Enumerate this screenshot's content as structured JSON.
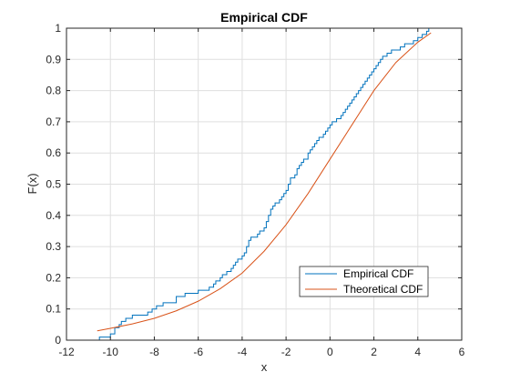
{
  "chart_data": {
    "type": "line",
    "title": "Empirical CDF",
    "xlabel": "x",
    "ylabel": "F(x)",
    "xlim": [
      -12,
      6
    ],
    "ylim": [
      0,
      1
    ],
    "xticks": [
      "-12",
      "-10",
      "-8",
      "-6",
      "-4",
      "-2",
      "0",
      "2",
      "4",
      "6"
    ],
    "yticks": [
      "0",
      "0.1",
      "0.2",
      "0.3",
      "0.4",
      "0.5",
      "0.6",
      "0.7",
      "0.8",
      "0.9",
      "1"
    ],
    "grid": true,
    "legend_position": "bottom-right",
    "series": [
      {
        "name": "Empirical CDF",
        "color": "#0072BD",
        "style": "stairs",
        "x": [
          -10.5,
          -10.0,
          -9.8,
          -9.6,
          -9.5,
          -9.3,
          -9.0,
          -8.3,
          -8.1,
          -7.9,
          -7.6,
          -7.0,
          -6.6,
          -6.0,
          -5.5,
          -5.3,
          -5.2,
          -5.0,
          -4.9,
          -4.7,
          -4.5,
          -4.4,
          -4.3,
          -4.2,
          -4.0,
          -3.9,
          -3.8,
          -3.7,
          -3.6,
          -3.5,
          -3.3,
          -3.2,
          -3.0,
          -2.9,
          -2.8,
          -2.7,
          -2.6,
          -2.5,
          -2.3,
          -2.2,
          -2.1,
          -2.0,
          -1.9,
          -1.8,
          -1.6,
          -1.5,
          -1.4,
          -1.3,
          -1.2,
          -1.0,
          -0.9,
          -0.8,
          -0.7,
          -0.6,
          -0.5,
          -0.4,
          -0.3,
          -0.2,
          -0.1,
          0.0,
          0.1,
          0.2,
          0.3,
          0.5,
          0.6,
          0.7,
          0.8,
          0.9,
          1.0,
          1.1,
          1.2,
          1.3,
          1.4,
          1.5,
          1.6,
          1.7,
          1.8,
          1.9,
          2.0,
          2.1,
          2.2,
          2.3,
          2.4,
          2.5,
          2.6,
          2.8,
          3.0,
          3.2,
          3.4,
          3.6,
          3.8,
          4.0,
          4.2,
          4.4,
          4.5
        ],
        "y": [
          0.01,
          0.02,
          0.04,
          0.05,
          0.06,
          0.07,
          0.08,
          0.09,
          0.1,
          0.11,
          0.12,
          0.14,
          0.15,
          0.16,
          0.17,
          0.18,
          0.19,
          0.2,
          0.21,
          0.22,
          0.23,
          0.24,
          0.25,
          0.26,
          0.27,
          0.28,
          0.3,
          0.32,
          0.33,
          0.33,
          0.34,
          0.35,
          0.36,
          0.38,
          0.4,
          0.42,
          0.43,
          0.44,
          0.45,
          0.46,
          0.47,
          0.48,
          0.5,
          0.52,
          0.53,
          0.55,
          0.56,
          0.57,
          0.58,
          0.6,
          0.61,
          0.62,
          0.63,
          0.64,
          0.65,
          0.65,
          0.66,
          0.67,
          0.68,
          0.69,
          0.7,
          0.7,
          0.71,
          0.72,
          0.73,
          0.74,
          0.75,
          0.76,
          0.77,
          0.78,
          0.79,
          0.8,
          0.81,
          0.82,
          0.83,
          0.84,
          0.85,
          0.86,
          0.87,
          0.88,
          0.89,
          0.9,
          0.91,
          0.91,
          0.92,
          0.93,
          0.93,
          0.94,
          0.95,
          0.95,
          0.96,
          0.97,
          0.98,
          0.99,
          1.0
        ]
      },
      {
        "name": "Theoretical CDF",
        "color": "#D95319",
        "style": "smooth",
        "x": [
          -10.6,
          -10.0,
          -9.0,
          -8.0,
          -7.0,
          -6.0,
          -5.0,
          -4.0,
          -3.0,
          -2.0,
          -1.0,
          0.0,
          1.0,
          2.0,
          3.0,
          4.0,
          4.6
        ],
        "y": [
          0.03,
          0.038,
          0.052,
          0.07,
          0.094,
          0.125,
          0.165,
          0.215,
          0.285,
          0.37,
          0.47,
          0.58,
          0.69,
          0.8,
          0.89,
          0.955,
          0.985
        ]
      }
    ]
  }
}
